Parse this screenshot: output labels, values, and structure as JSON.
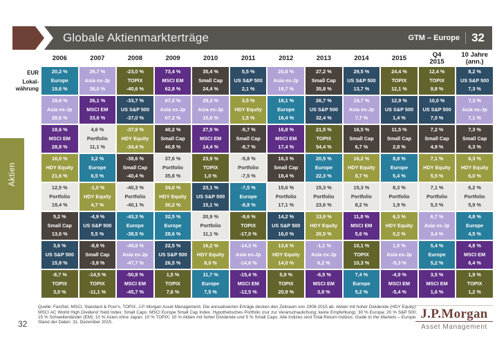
{
  "header": {
    "title": "Globale Aktienmarkterträge",
    "gtm_label": "GTM – Europe",
    "page_number": "32"
  },
  "page_number": "32",
  "side_tab": "Aktien",
  "axis": {
    "eur": "EUR",
    "local": "Lokal-\nwährung"
  },
  "asset_colors": {
    "Europe": {
      "bg": "#287e9d",
      "fg": "#ffffff"
    },
    "Asia ex-Jp": {
      "bg": "#b1a3d6",
      "fg": "#ffffff"
    },
    "TOPIX": {
      "bg": "#62642c",
      "fg": "#ffffff"
    },
    "MSCI EM": {
      "bg": "#5e2d85",
      "fg": "#ffffff"
    },
    "US S&P 500": {
      "bg": "#2e4d66",
      "fg": "#ffffff"
    },
    "Small Cap": {
      "bg": "#4a423d",
      "fg": "#ffffff"
    },
    "HDY Equity": {
      "bg": "#9a9c42",
      "fg": "#ffffff"
    },
    "Portfolio": {
      "bg": "#eae8e4",
      "fg": "#3c3c3c"
    }
  },
  "chart_data": {
    "type": "table",
    "title": "Globale Aktienmarkterträge",
    "cell_format": [
      "EUR return",
      "asset",
      "local-currency return"
    ],
    "columns": [
      {
        "label": "2006",
        "cells": [
          [
            "20,2 %",
            "Europe",
            "19,6 %"
          ],
          [
            "19,6 %",
            "Asia ex-Jp",
            "28,6 %"
          ],
          [
            "18,6 %",
            "MSCI EM",
            "28,8 %"
          ],
          [
            "16,0 %",
            "HDY Equity",
            "21,6 %"
          ],
          [
            "12,5 %",
            "Portfolio",
            "19,4 %"
          ],
          [
            "5,2 %",
            "Small Cap",
            "13,6 %"
          ],
          [
            "3,6 %",
            "US S&P 500",
            "15,8 %"
          ],
          [
            "-8,7 %",
            "TOPIX",
            "3,0 %"
          ]
        ]
      },
      {
        "label": "2007",
        "cells": [
          [
            "26,7 %",
            "Asia ex-Jp",
            "38,0 %"
          ],
          [
            "26,1 %",
            "MSCI EM",
            "33,6 %"
          ],
          [
            "4,6 %",
            "Portfolio",
            "11,1 %"
          ],
          [
            "3,2 %",
            "Europe",
            "6,5 %"
          ],
          [
            "-1,0 %",
            "HDY Equity",
            "4,7 %"
          ],
          [
            "-4,9 %",
            "US S&P 500",
            "5,5 %"
          ],
          [
            "-8,8 %",
            "Small Cap",
            "-3,8 %"
          ],
          [
            "-14,5 %",
            "TOPIX",
            "-11,1 %"
          ]
        ]
      },
      {
        "label": "2008",
        "cells": [
          [
            "-23,0 %",
            "TOPIX",
            "-40,6 %"
          ],
          [
            "-33,7 %",
            "US S&P 500",
            "-37,0 %"
          ],
          [
            "-37,9 %",
            "HDY Equity",
            "-34,4 %"
          ],
          [
            "-38,6 %",
            "Small Cap",
            "-40,4 %"
          ],
          [
            "-40,3 %",
            "Portfolio",
            "-40,1 %"
          ],
          [
            "-43,3 %",
            "Europe",
            "-38,5 %"
          ],
          [
            "-49,8 %",
            "Asia ex-Jp",
            "-47,7 %"
          ],
          [
            "-50,8 %",
            "MSCI EM",
            "-45,7 %"
          ]
        ]
      },
      {
        "label": "2009",
        "cells": [
          [
            "73,4 %",
            "MSCI EM",
            "62,8 %"
          ],
          [
            "67,2 %",
            "Asia ex-Jp",
            "67,2 %"
          ],
          [
            "40,2 %",
            "Small Cap",
            "40,8 %"
          ],
          [
            "37,6 %",
            "Portfolio",
            "35,8 %"
          ],
          [
            "34,0 %",
            "HDY Equity",
            "30,2 %"
          ],
          [
            "32,5 %",
            "Europe",
            "28,6 %"
          ],
          [
            "22,5 %",
            "US S&P 500",
            "26,5 %"
          ],
          [
            "1,5 %",
            "TOPIX",
            "7,6 %"
          ]
        ]
      },
      {
        "label": "2010",
        "cells": [
          [
            "35,4 %",
            "Small Cap",
            "24,4 %"
          ],
          [
            "28,3 %",
            "Asia ex-Jp",
            "15,6 %"
          ],
          [
            "27,5 %",
            "MSCI EM",
            "14,4 %"
          ],
          [
            "23,9 %",
            "TOPIX",
            "1,0 %"
          ],
          [
            "23,1 %",
            "US S&P 500",
            "15,1 %"
          ],
          [
            "20,9 %",
            "Portfolio",
            "11,1 %"
          ],
          [
            "16,2 %",
            "HDY Equity",
            "8,0 %"
          ],
          [
            "11,7 %",
            "Europe",
            "7,5 %"
          ]
        ]
      },
      {
        "label": "2011",
        "cells": [
          [
            "5,5 %",
            "US S&P 500",
            "2,1 %"
          ],
          [
            "3,5 %",
            "HDY Equity",
            "1,5 %"
          ],
          [
            "-5,7 %",
            "Small Cap",
            "-8,7 %"
          ],
          [
            "-5,8 %",
            "Portfolio",
            "-7,5 %"
          ],
          [
            "-7,5 %",
            "Europe",
            "-8,8 %"
          ],
          [
            "-9,6 %",
            "TOPIX",
            "-17,0 %"
          ],
          [
            "-14,3 %",
            "Asia ex-Jp",
            "-14,6 %"
          ],
          [
            "-15,4 %",
            "MSCI EM",
            "-12,5 %"
          ]
        ]
      },
      {
        "label": "2012",
        "cells": [
          [
            "20,8 %",
            "Asia ex-Jp",
            "19,7 %"
          ],
          [
            "18,1 %",
            "Europe",
            "16,4 %"
          ],
          [
            "16,8 %",
            "MSCI EM",
            "17,4 %"
          ],
          [
            "16,3 %",
            "Small Cap",
            "18,4 %"
          ],
          [
            "15,6 %",
            "Portfolio",
            "17,1 %"
          ],
          [
            "14,2 %",
            "US S&P 500",
            "16,0 %"
          ],
          [
            "13,6 %",
            "HDY Equity",
            "14,0 %"
          ],
          [
            "5,9 %",
            "TOPIX",
            "20,9 %"
          ]
        ]
      },
      {
        "label": "2013",
        "cells": [
          [
            "27,2 %",
            "Small Cap",
            "35,8 %"
          ],
          [
            "26,7 %",
            "US S&P 500",
            "32,4 %"
          ],
          [
            "21,5 %",
            "TOPIX",
            "54,4 %"
          ],
          [
            "20,5 %",
            "Europe",
            "22,3 %"
          ],
          [
            "15,3 %",
            "Portfolio",
            "23,6 %"
          ],
          [
            "13,9 %",
            "HDY Equity",
            "20,5 %"
          ],
          [
            "-1,1 %",
            "Asia ex-Jp",
            "6,2 %"
          ],
          [
            "-6,5 %",
            "MSCI EM",
            "3,8 %"
          ]
        ]
      },
      {
        "label": "2014",
        "cells": [
          [
            "29,5 %",
            "US S&P 500",
            "13,7 %"
          ],
          [
            "19,7 %",
            "Asia ex-Jp",
            "7,7 %"
          ],
          [
            "16,5 %",
            "Small Cap",
            "6,7 %"
          ],
          [
            "16,2 %",
            "HDY Equity",
            "8,7 %"
          ],
          [
            "15,3 %",
            "Portfolio",
            "8,2 %"
          ],
          [
            "11,8 %",
            "MSCI EM",
            "5,6 %"
          ],
          [
            "10,1 %",
            "TOPIX",
            "10,3 %"
          ],
          [
            "7,4 %",
            "Europe",
            "5,2 %"
          ]
        ]
      },
      {
        "label": "2015",
        "cells": [
          [
            "24,4 %",
            "TOPIX",
            "12,1 %"
          ],
          [
            "12,9 %",
            "US S&P 500",
            "1,4 %"
          ],
          [
            "11,5 %",
            "Small Cap",
            "2,8 %"
          ],
          [
            "8,8 %",
            "Europe",
            "5,4 %"
          ],
          [
            "8,3 %",
            "Portfolio",
            "1,9 %"
          ],
          [
            "6,3 %",
            "HDY Equity",
            "0,2 %"
          ],
          [
            "1,5 %",
            "Asia ex-Jp",
            "-5,3 %"
          ],
          [
            "-4,9 %",
            "MSCI EM",
            "-5,4 %"
          ]
        ]
      },
      {
        "label": "Q4\n2015",
        "cells": [
          [
            "12,4 %",
            "TOPIX",
            "9,8 %"
          ],
          [
            "10,0 %",
            "US S&P 500",
            "7,0 %"
          ],
          [
            "7,2 %",
            "Small Cap",
            "4,9 %"
          ],
          [
            "7,1 %",
            "HDY Equity",
            "5,5 %"
          ],
          [
            "7,1 %",
            "Portfolio",
            "5,3 %"
          ],
          [
            "6,7 %",
            "Asia ex-Jp",
            "3,4 %"
          ],
          [
            "5,4 %",
            "Europe",
            "5,2 %"
          ],
          [
            "3,5 %",
            "MSCI EM",
            "1,6 %"
          ]
        ]
      },
      {
        "label": "10 Jahre\n(ann.)",
        "cells": [
          [
            "8,2 %",
            "US S&P 500",
            "7,3 %"
          ],
          [
            "7,3 %",
            "Asia ex-Jp",
            "7,1 %"
          ],
          [
            "7,3 %",
            "Small Cap",
            "6,3 %"
          ],
          [
            "6,3 %",
            "HDY Equity",
            "6,0 %"
          ],
          [
            "6,2 %",
            "Portfolio",
            "5,9 %"
          ],
          [
            "4,8 %",
            "Europe",
            "4,5 %"
          ],
          [
            "4,8 %",
            "MSCI EM",
            "6,4 %"
          ],
          [
            "1,9 %",
            "TOPIX",
            "1,2 %"
          ]
        ]
      }
    ]
  },
  "footer": {
    "text_before": "Quelle: FactSet, MSCI, Standard & Poor's, TOPIX, J.P. Morgan Asset Management. Die annualisierten Erträge decken den Zeitraum von 2006-2015 ab. Aktien mit hoher Dividende (HDY Equity): MSCI AC World High Dividend Yield Index; Small Caps: MSCI Europe Small Cap Index. Hypothetisches Portfolio (nur zur Veranschaulichung; keine Empfehlung): 30 % Europa; 20 % S&P 500; 15 % Schwellenländer (EM); 10 % Asien ohne Japan; 10 % TOPIX; 10 % Aktien mit hoher Dividende und 5 % Small Caps. Alle Indizes sind Total-Return-Indizes. ",
    "italic_text": "Guide to the Markets – Europe.",
    "text_after": " Stand der Daten: 31. Dezember 2015."
  },
  "logo": {
    "brand": "J.P.Morgan",
    "sub": "Asset Management"
  }
}
